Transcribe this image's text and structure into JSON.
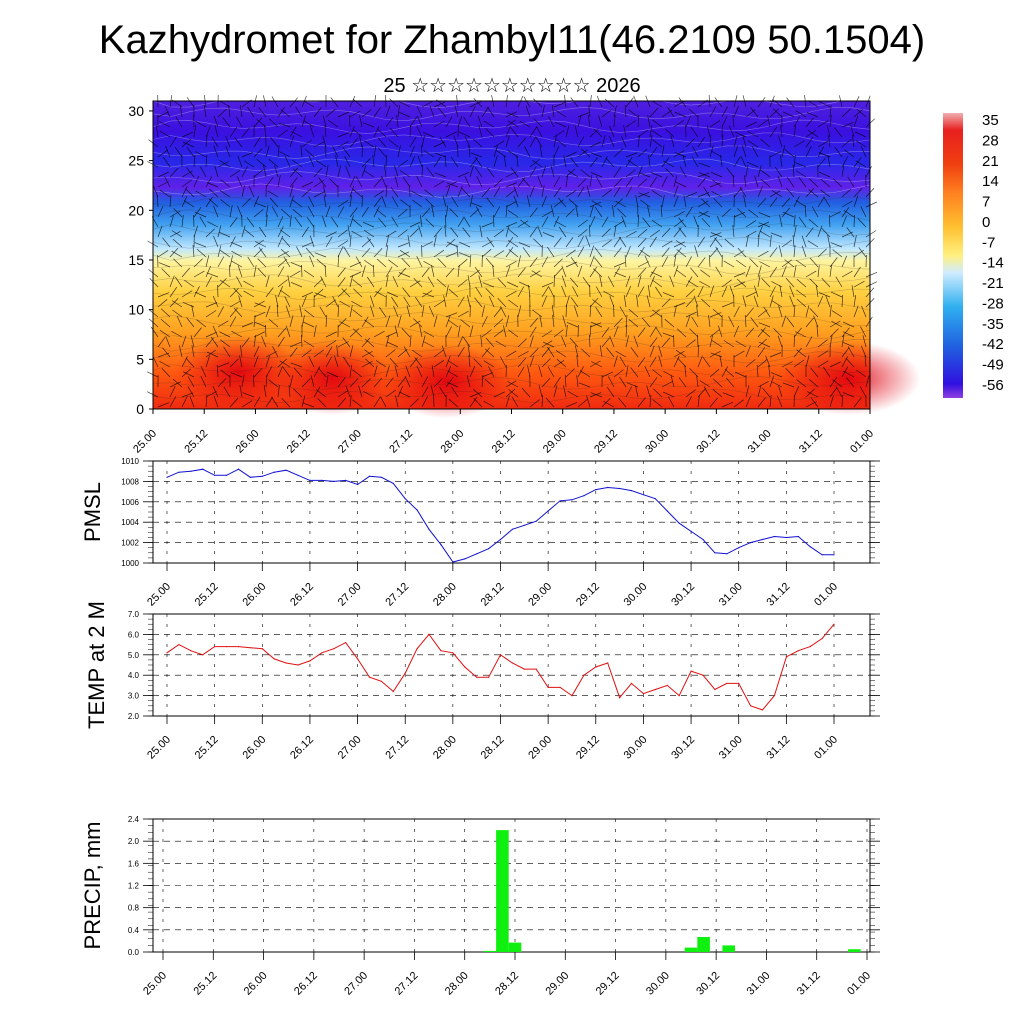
{
  "title": "Kazhydromet for Zhambyl11(46.2109 50.1504)",
  "subtitle": "25 ☆☆☆☆☆☆☆☆☆☆ 2026",
  "chart_data": [
    {
      "type": "heatmap",
      "title": "",
      "x_ticks": [
        "25.00",
        "25.12",
        "26.00",
        "26.12",
        "27.00",
        "27.12",
        "28.00",
        "28.12",
        "29.00",
        "29.12",
        "30.00",
        "30.12",
        "31.00",
        "31.12",
        "01.00"
      ],
      "y_ticks": [
        "0",
        "5",
        "10",
        "15",
        "20",
        "25",
        "30"
      ],
      "ylim": [
        0,
        31
      ],
      "colorbar_labels": [
        "35",
        "28",
        "21",
        "14",
        "7",
        "0",
        "-7",
        "-14",
        "-21",
        "-28",
        "-35",
        "-42",
        "-49",
        "-56"
      ],
      "overlay": "wind barbs and contour lines",
      "colors": {
        "warm_max": "#e01010",
        "neutral": "#fff4a0",
        "cold_min": "#3a10e0",
        "cold_top": "#8020f0"
      }
    },
    {
      "type": "line",
      "ylabel": "PMSL",
      "ylim": [
        1000,
        1010
      ],
      "y_ticks": [
        "1010",
        "1008",
        "1006",
        "1004",
        "1002",
        "1000"
      ],
      "x_ticks": [
        "25.00",
        "25.12",
        "26.00",
        "26.12",
        "27.00",
        "27.12",
        "28.00",
        "28.12",
        "29.00",
        "29.12",
        "30.00",
        "30.12",
        "31.00",
        "31.12",
        "01.00"
      ],
      "color": "#1010d0",
      "x": [
        0,
        3,
        6,
        9,
        12,
        15,
        18,
        21,
        24,
        27,
        30,
        33,
        36,
        39,
        42,
        45,
        48,
        51,
        54,
        57,
        60,
        63,
        66,
        69,
        72,
        75,
        78,
        81,
        84,
        87,
        90,
        93,
        96,
        99,
        102,
        105,
        108,
        111,
        114,
        117,
        120,
        123,
        126,
        129,
        132,
        135,
        138,
        141,
        144,
        147,
        150,
        153,
        156,
        159,
        162,
        165,
        168
      ],
      "values": [
        1008.4,
        1008.9,
        1009.0,
        1009.2,
        1008.6,
        1008.6,
        1009.2,
        1008.4,
        1008.5,
        1008.9,
        1009.1,
        1008.6,
        1008.1,
        1008.1,
        1008.0,
        1008.1,
        1007.7,
        1008.5,
        1008.4,
        1007.8,
        1006.3,
        1005.2,
        1003.3,
        1001.8,
        1000.1,
        1000.4,
        1000.9,
        1001.4,
        1002.3,
        1003.3,
        1003.7,
        1004.1,
        1005.1,
        1006.1,
        1006.2,
        1006.6,
        1007.2,
        1007.4,
        1007.3,
        1007.1,
        1006.7,
        1006.3,
        1005.1,
        1003.9,
        1003.1,
        1002.3,
        1001.0,
        1000.9,
        1001.5,
        1002.0,
        1002.3,
        1002.6,
        1002.5,
        1002.6,
        1001.6,
        1000.8,
        1000.8
      ]
    },
    {
      "type": "line",
      "ylabel": "TEMP at 2 M",
      "ylim": [
        2.0,
        7.0
      ],
      "y_ticks": [
        "7.0",
        "6.0",
        "5.0",
        "4.0",
        "3.0",
        "2.0"
      ],
      "x_ticks": [
        "25.00",
        "25.12",
        "26.00",
        "26.12",
        "27.00",
        "27.12",
        "28.00",
        "28.12",
        "29.00",
        "29.12",
        "30.00",
        "30.12",
        "31.00",
        "31.12",
        "01.00"
      ],
      "color": "#e01010",
      "x": [
        0,
        3,
        6,
        9,
        12,
        15,
        18,
        21,
        24,
        27,
        30,
        33,
        36,
        39,
        42,
        45,
        48,
        51,
        54,
        57,
        60,
        63,
        66,
        69,
        72,
        75,
        78,
        81,
        84,
        87,
        90,
        93,
        96,
        99,
        102,
        105,
        108,
        111,
        114,
        117,
        120,
        123,
        126,
        129,
        132,
        135,
        138,
        141,
        144,
        147,
        150,
        153,
        156,
        159,
        162,
        165,
        168
      ],
      "values": [
        5.1,
        5.5,
        5.2,
        5.0,
        5.4,
        5.4,
        5.4,
        5.35,
        5.3,
        4.8,
        4.6,
        4.5,
        4.7,
        5.1,
        5.3,
        5.6,
        4.8,
        3.9,
        3.7,
        3.2,
        4.1,
        5.3,
        6.0,
        5.2,
        5.1,
        4.4,
        3.9,
        3.9,
        5.0,
        4.6,
        4.3,
        4.3,
        3.4,
        3.4,
        3.0,
        4.0,
        4.4,
        4.6,
        2.9,
        3.6,
        3.1,
        3.3,
        3.5,
        3.0,
        4.2,
        4.0,
        3.3,
        3.6,
        3.6,
        2.5,
        2.3,
        3.0,
        4.9,
        5.2,
        5.4,
        5.8,
        6.5
      ]
    },
    {
      "type": "bar",
      "ylabel": "PRECIP, mm",
      "ylim": [
        0,
        2.4
      ],
      "y_ticks": [
        "2.4",
        "2.0",
        "1.6",
        "1.2",
        "0.8",
        "0.4",
        "0.0"
      ],
      "x_ticks": [
        "25.00",
        "25.12",
        "26.00",
        "26.12",
        "27.00",
        "27.12",
        "28.00",
        "28.12",
        "29.00",
        "29.12",
        "30.00",
        "30.12",
        "31.00",
        "31.12",
        "01.00"
      ],
      "color": "#10f010",
      "x": [
        78,
        81,
        84,
        123,
        126,
        129,
        132,
        135,
        138,
        141,
        144,
        147,
        150,
        153,
        156,
        159,
        162,
        165,
        168
      ],
      "values": [
        0.02,
        2.2,
        0.17,
        0.0,
        0.08,
        0.27,
        0.0,
        0.12,
        0.0,
        0.0,
        0.0,
        0.0,
        0.0,
        0.0,
        0.0,
        0.0,
        0.0,
        0.05,
        0.0
      ]
    }
  ]
}
